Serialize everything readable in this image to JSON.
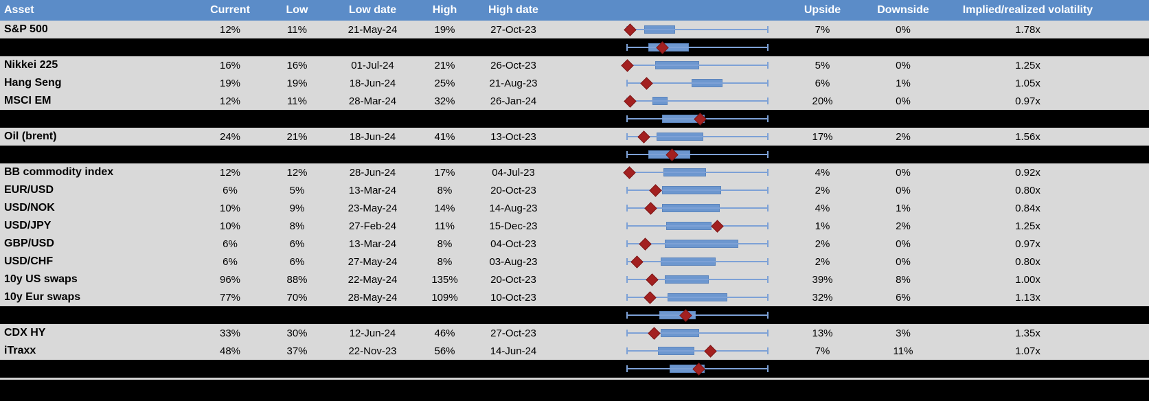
{
  "chart_data": {
    "type": "table",
    "columns": [
      "Asset",
      "Current",
      "Low",
      "Low date",
      "High",
      "High date",
      "",
      "Upside",
      "Downside",
      "Implied/realized volatility"
    ],
    "boxplot_axis": {
      "min": 0,
      "max": 1,
      "note_lo": "whisker left = period low",
      "note_hi": "whisker right = period high"
    },
    "rows": [
      {
        "kind": "asset",
        "asset": "S&P 500",
        "current": "12%",
        "low": "11%",
        "low_date": "21-May-24",
        "high": "19%",
        "high_date": "27-Oct-23",
        "upside": "7%",
        "downside": "0%",
        "implied_realized": "1.78x",
        "box": {
          "lo": 0,
          "q1": 0.12,
          "q3": 0.34,
          "hi": 1,
          "cur": 0.02
        }
      },
      {
        "kind": "summary",
        "box": {
          "lo": 0,
          "q1": 0.15,
          "q3": 0.44,
          "hi": 1,
          "cur": 0.25
        }
      },
      {
        "kind": "asset",
        "asset": "Nikkei 225",
        "current": "16%",
        "low": "16%",
        "low_date": "01-Jul-24",
        "high": "21%",
        "high_date": "26-Oct-23",
        "upside": "5%",
        "downside": "0%",
        "implied_realized": "1.25x",
        "box": {
          "lo": 0,
          "q1": 0.2,
          "q3": 0.51,
          "hi": 1,
          "cur": 0.0
        }
      },
      {
        "kind": "asset",
        "asset": "Hang Seng",
        "current": "19%",
        "low": "19%",
        "low_date": "18-Jun-24",
        "high": "25%",
        "high_date": "21-Aug-23",
        "upside": "6%",
        "downside": "1%",
        "implied_realized": "1.05x",
        "box": {
          "lo": 0,
          "q1": 0.46,
          "q3": 0.68,
          "hi": 1,
          "cur": 0.14
        }
      },
      {
        "kind": "asset",
        "asset": "MSCI EM",
        "current": "12%",
        "low": "11%",
        "low_date": "28-Mar-24",
        "high": "32%",
        "high_date": "26-Jan-24",
        "upside": "20%",
        "downside": "0%",
        "implied_realized": "0.97x",
        "box": {
          "lo": 0,
          "q1": 0.18,
          "q3": 0.29,
          "hi": 1,
          "cur": 0.02
        }
      },
      {
        "kind": "summary",
        "box": {
          "lo": 0,
          "q1": 0.25,
          "q3": 0.55,
          "hi": 1,
          "cur": 0.52
        }
      },
      {
        "kind": "asset",
        "asset": "Oil (brent)",
        "current": "24%",
        "low": "21%",
        "low_date": "18-Jun-24",
        "high": "41%",
        "high_date": "13-Oct-23",
        "upside": "17%",
        "downside": "2%",
        "implied_realized": "1.56x",
        "box": {
          "lo": 0,
          "q1": 0.21,
          "q3": 0.54,
          "hi": 1,
          "cur": 0.12
        }
      },
      {
        "kind": "summary",
        "box": {
          "lo": 0,
          "q1": 0.15,
          "q3": 0.45,
          "hi": 1,
          "cur": 0.32
        }
      },
      {
        "kind": "asset",
        "asset": "BB commodity index",
        "current": "12%",
        "low": "12%",
        "low_date": "28-Jun-24",
        "high": "17%",
        "high_date": "04-Jul-23",
        "upside": "4%",
        "downside": "0%",
        "implied_realized": "0.92x",
        "box": {
          "lo": 0,
          "q1": 0.26,
          "q3": 0.56,
          "hi": 1,
          "cur": 0.015
        }
      },
      {
        "kind": "asset",
        "asset": "EUR/USD",
        "current": "6%",
        "low": "5%",
        "low_date": "13-Mar-24",
        "high": "8%",
        "high_date": "20-Oct-23",
        "upside": "2%",
        "downside": "0%",
        "implied_realized": "0.80x",
        "box": {
          "lo": 0,
          "q1": 0.25,
          "q3": 0.67,
          "hi": 1,
          "cur": 0.2
        }
      },
      {
        "kind": "asset",
        "asset": "USD/NOK",
        "current": "10%",
        "low": "9%",
        "low_date": "23-May-24",
        "high": "14%",
        "high_date": "14-Aug-23",
        "upside": "4%",
        "downside": "1%",
        "implied_realized": "0.84x",
        "box": {
          "lo": 0,
          "q1": 0.25,
          "q3": 0.66,
          "hi": 1,
          "cur": 0.17
        }
      },
      {
        "kind": "asset",
        "asset": "USD/JPY",
        "current": "10%",
        "low": "8%",
        "low_date": "27-Feb-24",
        "high": "11%",
        "high_date": "15-Dec-23",
        "upside": "1%",
        "downside": "2%",
        "implied_realized": "1.25x",
        "box": {
          "lo": 0,
          "q1": 0.28,
          "q3": 0.6,
          "hi": 1,
          "cur": 0.64
        }
      },
      {
        "kind": "asset",
        "asset": "GBP/USD",
        "current": "6%",
        "low": "6%",
        "low_date": "13-Mar-24",
        "high": "8%",
        "high_date": "04-Oct-23",
        "upside": "2%",
        "downside": "0%",
        "implied_realized": "0.97x",
        "box": {
          "lo": 0,
          "q1": 0.27,
          "q3": 0.79,
          "hi": 1,
          "cur": 0.13
        }
      },
      {
        "kind": "asset",
        "asset": "USD/CHF",
        "current": "6%",
        "low": "6%",
        "low_date": "27-May-24",
        "high": "8%",
        "high_date": "03-Aug-23",
        "upside": "2%",
        "downside": "0%",
        "implied_realized": "0.80x",
        "box": {
          "lo": 0,
          "q1": 0.24,
          "q3": 0.63,
          "hi": 1,
          "cur": 0.07
        }
      },
      {
        "kind": "asset",
        "asset": "10y US swaps",
        "current": "96%",
        "low": "88%",
        "low_date": "22-May-24",
        "high": "135%",
        "high_date": "20-Oct-23",
        "upside": "39%",
        "downside": "8%",
        "implied_realized": "1.00x",
        "box": {
          "lo": 0,
          "q1": 0.27,
          "q3": 0.58,
          "hi": 1,
          "cur": 0.18
        }
      },
      {
        "kind": "asset",
        "asset": "10y Eur swaps",
        "current": "77%",
        "low": "70%",
        "low_date": "28-May-24",
        "high": "109%",
        "high_date": "10-Oct-23",
        "upside": "32%",
        "downside": "6%",
        "implied_realized": "1.13x",
        "box": {
          "lo": 0,
          "q1": 0.29,
          "q3": 0.71,
          "hi": 1,
          "cur": 0.165
        }
      },
      {
        "kind": "summary",
        "box": {
          "lo": 0,
          "q1": 0.23,
          "q3": 0.49,
          "hi": 1,
          "cur": 0.415
        }
      },
      {
        "kind": "asset",
        "asset": "CDX HY",
        "current": "33%",
        "low": "30%",
        "low_date": "12-Jun-24",
        "high": "46%",
        "high_date": "27-Oct-23",
        "upside": "13%",
        "downside": "3%",
        "implied_realized": "1.35x",
        "box": {
          "lo": 0,
          "q1": 0.24,
          "q3": 0.51,
          "hi": 1,
          "cur": 0.195
        }
      },
      {
        "kind": "asset",
        "asset": "iTraxx",
        "current": "48%",
        "low": "37%",
        "low_date": "22-Nov-23",
        "high": "56%",
        "high_date": "14-Jun-24",
        "upside": "7%",
        "downside": "11%",
        "implied_realized": "1.07x",
        "box": {
          "lo": 0,
          "q1": 0.22,
          "q3": 0.48,
          "hi": 1,
          "cur": 0.595
        }
      },
      {
        "kind": "summary",
        "box": {
          "lo": 0,
          "q1": 0.3,
          "q3": 0.55,
          "hi": 1,
          "cur": 0.51
        }
      }
    ]
  },
  "colors": {
    "header_bg": "#5b8cc8",
    "header_text": "#ffffff",
    "row_bg": "#d9d9d9",
    "band_bg": "#000000",
    "body_text": "#000000",
    "whisker": "#7da1d6",
    "box_fill": "#6d97cf",
    "box_border": "#5b84bc",
    "diamond": "#a32020",
    "diamond_border": "#7e1717",
    "separator": "#d4d4d4"
  }
}
